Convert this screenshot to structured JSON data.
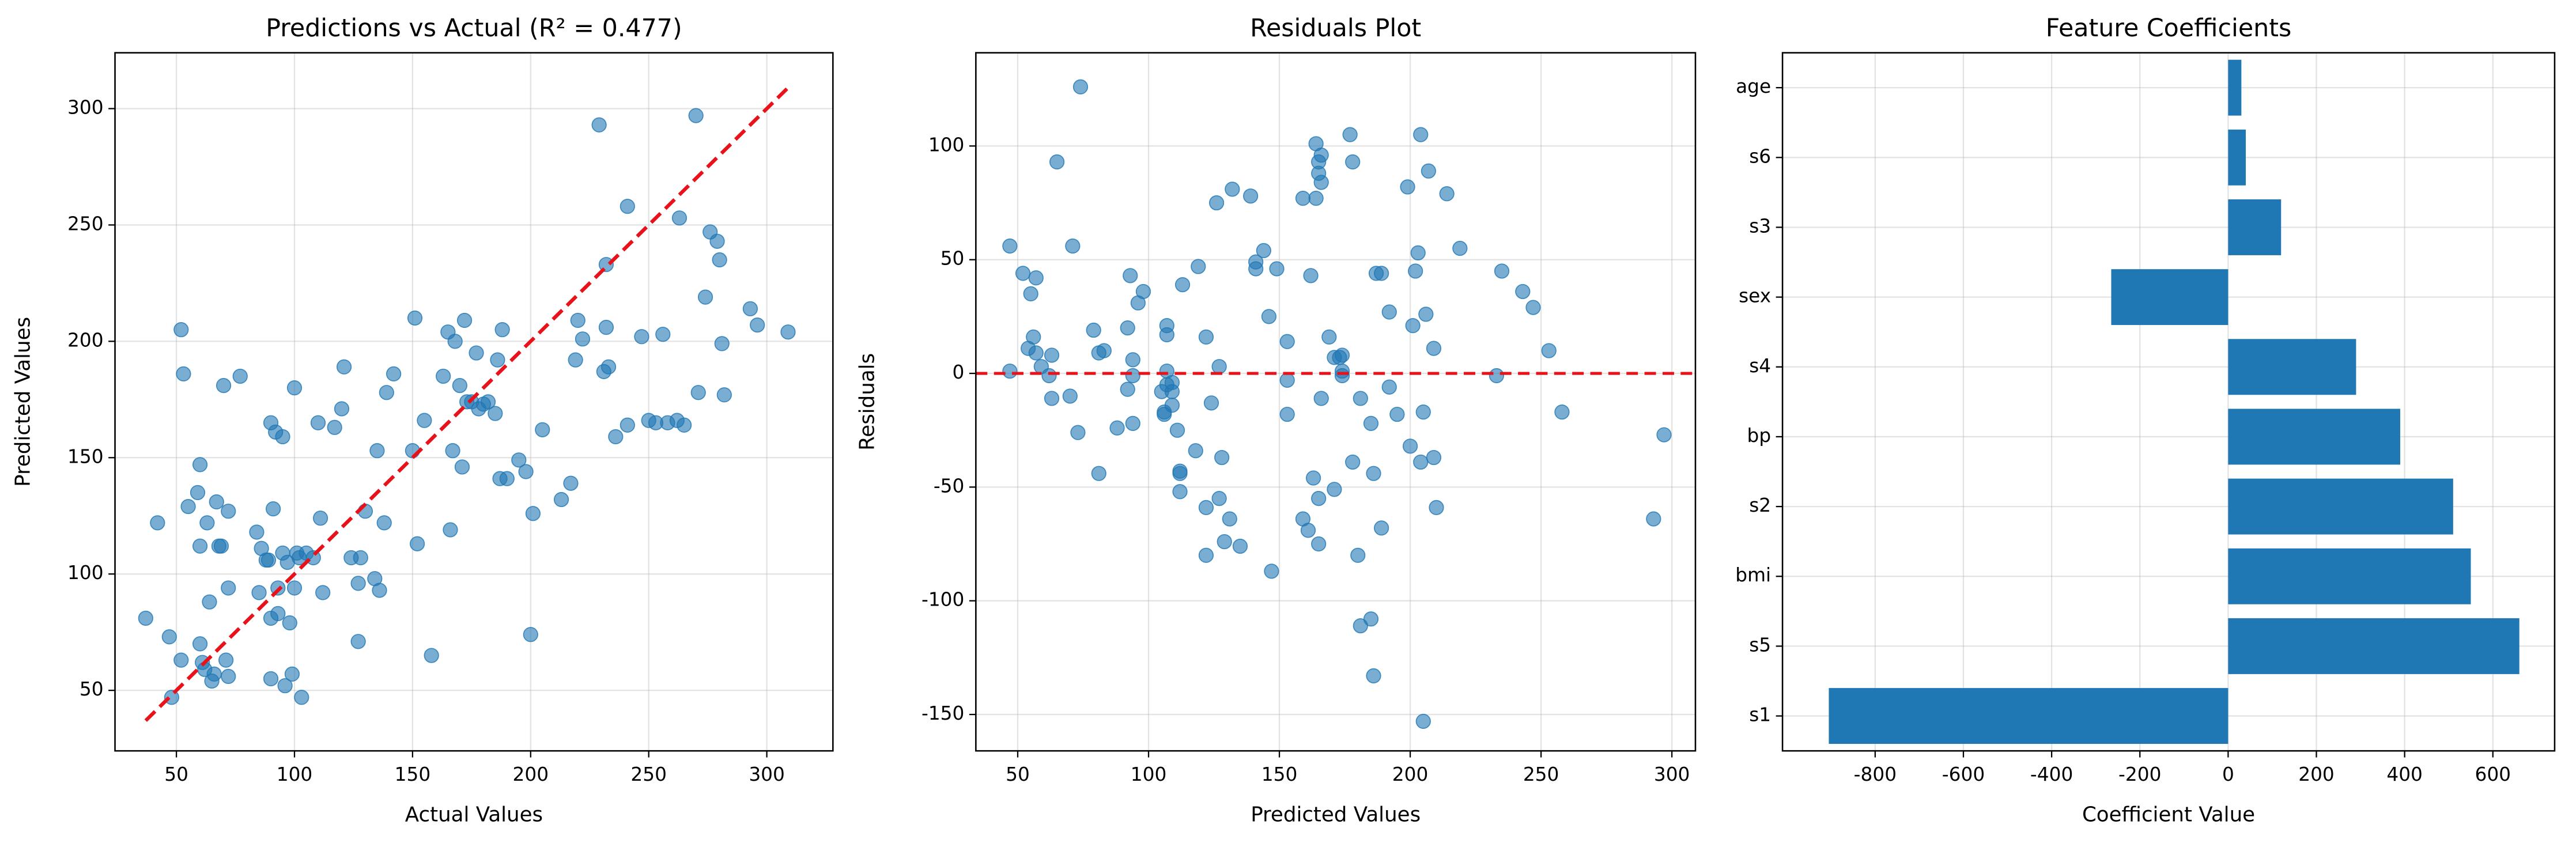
{
  "chart_data": [
    {
      "type": "scatter",
      "title": "Predictions vs Actual (R² = 0.477)",
      "xlabel": "Actual Values",
      "ylabel": "Predicted Values",
      "color": "#1f77b4",
      "grid": true,
      "x": [
        37,
        42,
        47,
        48,
        52,
        52,
        53,
        55,
        59,
        60,
        60,
        60,
        61,
        62,
        63,
        64,
        65,
        66,
        67,
        68,
        69,
        70,
        71,
        72,
        72,
        72,
        77,
        84,
        85,
        86,
        88,
        89,
        90,
        90,
        90,
        91,
        92,
        93,
        93,
        95,
        95,
        96,
        97,
        98,
        99,
        100,
        100,
        101,
        102,
        103,
        105,
        108,
        110,
        111,
        112,
        117,
        120,
        121,
        124,
        127,
        127,
        128,
        130,
        134,
        135,
        136,
        138,
        139,
        142,
        150,
        151,
        152,
        155,
        158,
        163,
        165,
        166,
        167,
        168,
        170,
        171,
        172,
        173,
        175,
        177,
        178,
        180,
        182,
        185,
        186,
        187,
        188,
        190,
        195,
        198,
        200,
        201,
        205,
        213,
        217,
        219,
        220,
        222,
        229,
        231,
        232,
        232,
        233,
        236,
        241,
        241,
        247,
        250,
        253,
        256,
        258,
        262,
        263,
        265,
        270,
        271,
        274,
        276,
        279,
        280,
        281,
        282,
        293,
        296,
        309
      ],
      "values": [
        81,
        122,
        73,
        47,
        63,
        205,
        186,
        129,
        135,
        147,
        112,
        70,
        62,
        59,
        122,
        88,
        54,
        57,
        131,
        112,
        112,
        181,
        63,
        127,
        94,
        56,
        185,
        118,
        92,
        111,
        106,
        106,
        81,
        165,
        55,
        128,
        161,
        83,
        94,
        159,
        109,
        52,
        105,
        79,
        57,
        94,
        180,
        109,
        107,
        47,
        109,
        107,
        165,
        124,
        92,
        163,
        171,
        189,
        107,
        71,
        96,
        107,
        127,
        98,
        153,
        93,
        122,
        178,
        186,
        153,
        210,
        113,
        166,
        65,
        185,
        204,
        119,
        153,
        200,
        181,
        146,
        209,
        174,
        174,
        195,
        171,
        173,
        174,
        169,
        192,
        141,
        205,
        141,
        149,
        144,
        74,
        126,
        162,
        132,
        139,
        192,
        209,
        201,
        293,
        187,
        233,
        206,
        189,
        159,
        164,
        258,
        202,
        166,
        165,
        203,
        165,
        166,
        253,
        164,
        297,
        178,
        219,
        247,
        243,
        235,
        199,
        177,
        214,
        207,
        204
      ],
      "reference_line": {
        "x": [
          37,
          309
        ],
        "values": [
          37,
          309
        ],
        "color": "#e8121a"
      },
      "xlim": [
        24,
        328
      ],
      "ylim": [
        24,
        324
      ],
      "xticks": [
        50,
        100,
        150,
        200,
        250,
        300
      ],
      "yticks": [
        50,
        100,
        150,
        200,
        250,
        300
      ]
    },
    {
      "type": "scatter",
      "title": "Residuals Plot",
      "xlabel": "Predicted Values",
      "ylabel": "Residuals",
      "color": "#1f77b4",
      "grid": true,
      "x": [
        81,
        122,
        73,
        47,
        63,
        205,
        186,
        129,
        135,
        147,
        112,
        70,
        62,
        59,
        122,
        88,
        54,
        57,
        131,
        112,
        112,
        181,
        63,
        127,
        94,
        56,
        185,
        118,
        92,
        111,
        106,
        106,
        81,
        165,
        55,
        128,
        161,
        83,
        94,
        159,
        109,
        52,
        105,
        79,
        57,
        94,
        180,
        109,
        107,
        47,
        109,
        107,
        165,
        124,
        92,
        163,
        171,
        189,
        107,
        71,
        96,
        107,
        127,
        98,
        153,
        93,
        122,
        178,
        186,
        153,
        210,
        113,
        166,
        65,
        185,
        204,
        119,
        153,
        200,
        181,
        146,
        209,
        174,
        174,
        195,
        171,
        173,
        174,
        169,
        192,
        141,
        205,
        141,
        149,
        144,
        74,
        126,
        162,
        132,
        139,
        192,
        209,
        201,
        293,
        187,
        233,
        206,
        189,
        159,
        164,
        258,
        202,
        166,
        165,
        203,
        165,
        166,
        253,
        164,
        297,
        178,
        219,
        247,
        243,
        235,
        199,
        177,
        214,
        207,
        204
      ],
      "values": [
        -44,
        -80,
        -26,
        1,
        -11,
        -153,
        -133,
        -74,
        -76,
        -87,
        -52,
        -10,
        -1,
        3,
        -59,
        -24,
        11,
        9,
        -64,
        -44,
        -43,
        -111,
        8,
        -55,
        -22,
        16,
        -108,
        -34,
        -7,
        -25,
        -18,
        -17,
        9,
        -75,
        35,
        -37,
        -69,
        10,
        -1,
        -64,
        -14,
        44,
        -8,
        19,
        42,
        6,
        -80,
        -8,
        -5,
        56,
        -4,
        1,
        -55,
        -13,
        20,
        -46,
        -51,
        -68,
        17,
        56,
        31,
        21,
        3,
        36,
        -18,
        43,
        16,
        -39,
        -44,
        -3,
        -59,
        39,
        -11,
        93,
        -22,
        -39,
        47,
        14,
        -32,
        -11,
        25,
        -37,
        -1,
        1,
        -18,
        7,
        7,
        8,
        16,
        -6,
        46,
        -17,
        49,
        46,
        54,
        126,
        75,
        43,
        81,
        78,
        27,
        11,
        21,
        -64,
        44,
        -1,
        26,
        44,
        77,
        77,
        -17,
        45,
        84,
        88,
        53,
        93,
        96,
        10,
        101,
        -27,
        93,
        55,
        29,
        36,
        45,
        82,
        105,
        79,
        89,
        105
      ],
      "hline": {
        "value": 0,
        "color": "#e8121a"
      },
      "xlim": [
        34,
        309
      ],
      "ylim": [
        -166,
        141
      ],
      "xticks": [
        50,
        100,
        150,
        200,
        250,
        300
      ],
      "yticks": [
        -150,
        -100,
        -50,
        0,
        50,
        100
      ]
    },
    {
      "type": "barh",
      "title": "Feature Coefficients",
      "xlabel": "Coefficient Value",
      "color": "#1f77b4",
      "grid": true,
      "categories": [
        "age",
        "s6",
        "s3",
        "sex",
        "s4",
        "bp",
        "s2",
        "bmi",
        "s5",
        "s1"
      ],
      "values": [
        30,
        40,
        120,
        -265,
        290,
        390,
        510,
        550,
        660,
        -905
      ],
      "xlim": [
        -1010,
        740
      ],
      "xticks": [
        -800,
        -600,
        -400,
        -200,
        0,
        200,
        400,
        600
      ]
    }
  ]
}
